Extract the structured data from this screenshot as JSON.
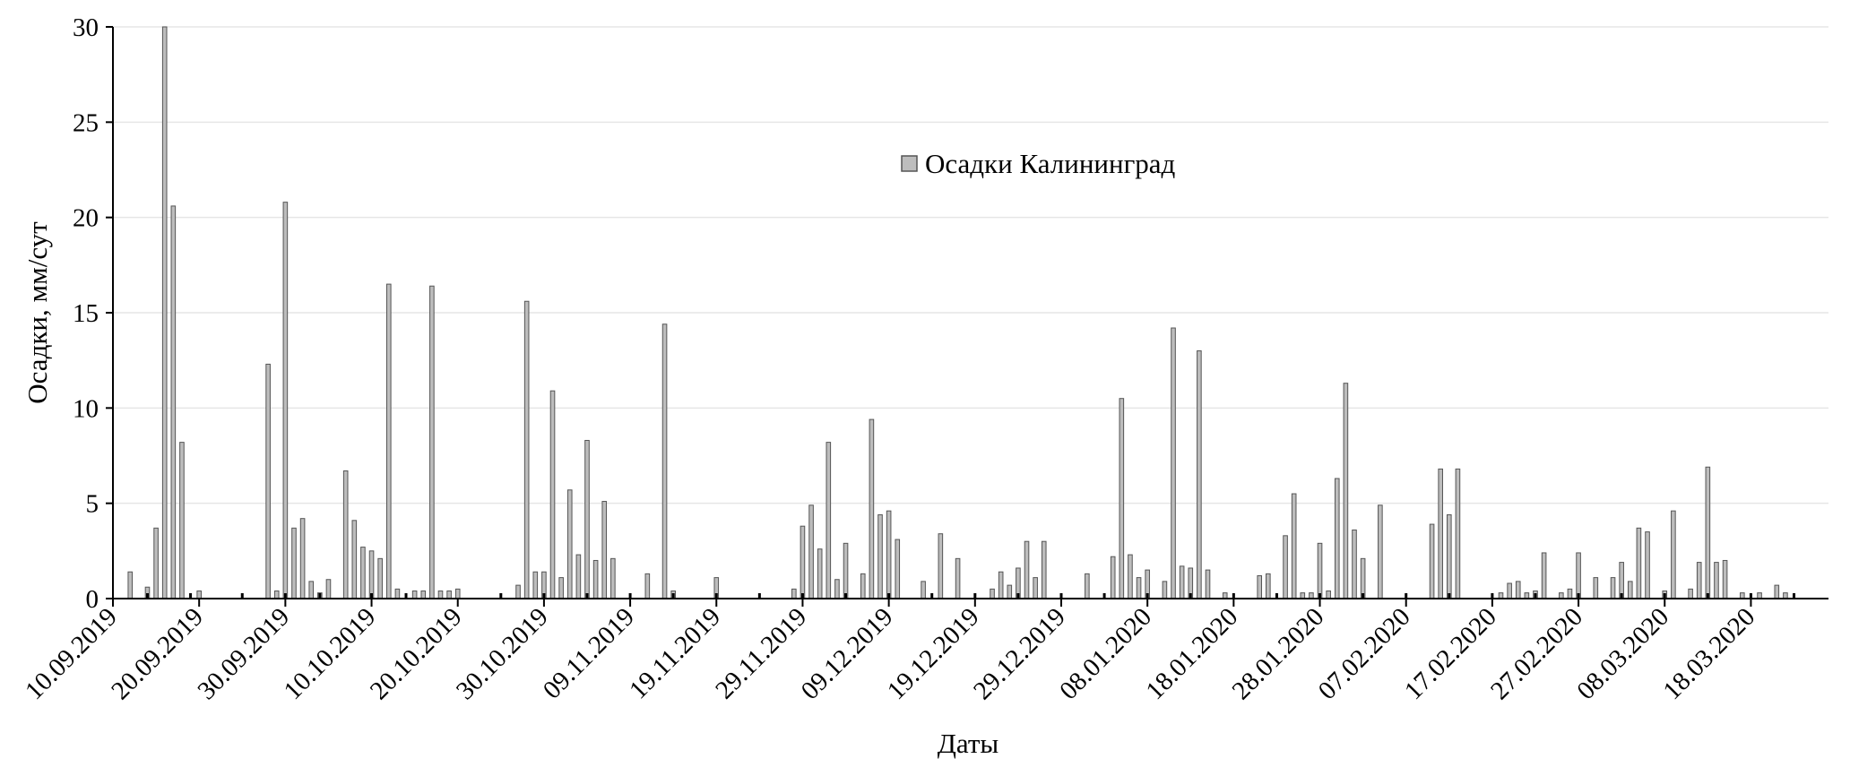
{
  "chart_data": {
    "type": "bar",
    "title": "",
    "xlabel": "Даты",
    "ylabel": "Осадки, мм/сут",
    "ylim": [
      0,
      30
    ],
    "yticks": [
      0,
      5,
      10,
      15,
      20,
      25,
      30
    ],
    "grid": true,
    "legend_position": "top-center",
    "x_range": [
      "2019-09-10",
      "2020-03-27"
    ],
    "xticks": [
      "10.09.2019",
      "20.09.2019",
      "30.09.2019",
      "10.10.2019",
      "20.10.2019",
      "30.10.2019",
      "09.11.2019",
      "19.11.2019",
      "29.11.2019",
      "09.12.2019",
      "19.12.2019",
      "29.12.2019",
      "08.01.2020",
      "18.01.2020",
      "28.01.2020",
      "07.02.2020",
      "17.02.2020",
      "27.02.2020",
      "08.03.2020",
      "18.03.2020"
    ],
    "colors": {
      "bar_fill": "#bdbdbd",
      "bar_stroke": "#555555",
      "axis": "#000000",
      "grid": "#e6e6e6"
    },
    "series": [
      {
        "name": "Осадки Калининград",
        "points": [
          [
            "2019-09-12",
            1.4
          ],
          [
            "2019-09-14",
            0.6
          ],
          [
            "2019-09-15",
            3.7
          ],
          [
            "2019-09-16",
            30.0
          ],
          [
            "2019-09-17",
            20.6
          ],
          [
            "2019-09-18",
            8.2
          ],
          [
            "2019-09-20",
            0.4
          ],
          [
            "2019-09-28",
            12.3
          ],
          [
            "2019-09-29",
            0.4
          ],
          [
            "2019-09-30",
            20.8
          ],
          [
            "2019-10-01",
            3.7
          ],
          [
            "2019-10-02",
            4.2
          ],
          [
            "2019-10-03",
            0.9
          ],
          [
            "2019-10-04",
            0.3
          ],
          [
            "2019-10-05",
            1.0
          ],
          [
            "2019-10-07",
            6.7
          ],
          [
            "2019-10-08",
            4.1
          ],
          [
            "2019-10-09",
            2.7
          ],
          [
            "2019-10-10",
            2.5
          ],
          [
            "2019-10-11",
            2.1
          ],
          [
            "2019-10-12",
            16.5
          ],
          [
            "2019-10-13",
            0.5
          ],
          [
            "2019-10-15",
            0.4
          ],
          [
            "2019-10-16",
            0.4
          ],
          [
            "2019-10-17",
            16.4
          ],
          [
            "2019-10-18",
            0.4
          ],
          [
            "2019-10-19",
            0.4
          ],
          [
            "2019-10-20",
            0.5
          ],
          [
            "2019-10-27",
            0.7
          ],
          [
            "2019-10-28",
            15.6
          ],
          [
            "2019-10-29",
            1.4
          ],
          [
            "2019-10-30",
            1.4
          ],
          [
            "2019-10-31",
            10.9
          ],
          [
            "2019-11-01",
            1.1
          ],
          [
            "2019-11-02",
            5.7
          ],
          [
            "2019-11-03",
            2.3
          ],
          [
            "2019-11-04",
            8.3
          ],
          [
            "2019-11-05",
            2.0
          ],
          [
            "2019-11-06",
            5.1
          ],
          [
            "2019-11-07",
            2.1
          ],
          [
            "2019-11-11",
            1.3
          ],
          [
            "2019-11-13",
            14.4
          ],
          [
            "2019-11-14",
            0.4
          ],
          [
            "2019-11-19",
            1.1
          ],
          [
            "2019-11-28",
            0.5
          ],
          [
            "2019-11-29",
            3.8
          ],
          [
            "2019-11-30",
            4.9
          ],
          [
            "2019-12-01",
            2.6
          ],
          [
            "2019-12-02",
            8.2
          ],
          [
            "2019-12-03",
            1.0
          ],
          [
            "2019-12-04",
            2.9
          ],
          [
            "2019-12-06",
            1.3
          ],
          [
            "2019-12-07",
            9.4
          ],
          [
            "2019-12-08",
            4.4
          ],
          [
            "2019-12-09",
            4.6
          ],
          [
            "2019-12-10",
            3.1
          ],
          [
            "2019-12-13",
            0.9
          ],
          [
            "2019-12-15",
            3.4
          ],
          [
            "2019-12-17",
            2.1
          ],
          [
            "2019-12-21",
            0.5
          ],
          [
            "2019-12-22",
            1.4
          ],
          [
            "2019-12-23",
            0.7
          ],
          [
            "2019-12-24",
            1.6
          ],
          [
            "2019-12-25",
            3.0
          ],
          [
            "2019-12-26",
            1.1
          ],
          [
            "2019-12-27",
            3.0
          ],
          [
            "2020-01-01",
            1.3
          ],
          [
            "2020-01-04",
            2.2
          ],
          [
            "2020-01-05",
            10.5
          ],
          [
            "2020-01-06",
            2.3
          ],
          [
            "2020-01-07",
            1.1
          ],
          [
            "2020-01-08",
            1.5
          ],
          [
            "2020-01-10",
            0.9
          ],
          [
            "2020-01-11",
            14.2
          ],
          [
            "2020-01-12",
            1.7
          ],
          [
            "2020-01-13",
            1.6
          ],
          [
            "2020-01-14",
            13.0
          ],
          [
            "2020-01-15",
            1.5
          ],
          [
            "2020-01-17",
            0.3
          ],
          [
            "2020-01-21",
            1.2
          ],
          [
            "2020-01-22",
            1.3
          ],
          [
            "2020-01-24",
            3.3
          ],
          [
            "2020-01-25",
            5.5
          ],
          [
            "2020-01-26",
            0.3
          ],
          [
            "2020-01-27",
            0.3
          ],
          [
            "2020-01-28",
            2.9
          ],
          [
            "2020-01-29",
            0.4
          ],
          [
            "2020-01-30",
            6.3
          ],
          [
            "2020-01-31",
            11.3
          ],
          [
            "2020-02-01",
            3.6
          ],
          [
            "2020-02-02",
            2.1
          ],
          [
            "2020-02-04",
            4.9
          ],
          [
            "2020-02-10",
            3.9
          ],
          [
            "2020-02-11",
            6.8
          ],
          [
            "2020-02-12",
            4.4
          ],
          [
            "2020-02-13",
            6.8
          ],
          [
            "2020-02-18",
            0.3
          ],
          [
            "2020-02-19",
            0.8
          ],
          [
            "2020-02-20",
            0.9
          ],
          [
            "2020-02-21",
            0.3
          ],
          [
            "2020-02-22",
            0.4
          ],
          [
            "2020-02-23",
            2.4
          ],
          [
            "2020-02-25",
            0.3
          ],
          [
            "2020-02-26",
            0.5
          ],
          [
            "2020-02-27",
            2.4
          ],
          [
            "2020-02-29",
            1.1
          ],
          [
            "2020-03-02",
            1.1
          ],
          [
            "2020-03-03",
            1.9
          ],
          [
            "2020-03-04",
            0.9
          ],
          [
            "2020-03-05",
            3.7
          ],
          [
            "2020-03-06",
            3.5
          ],
          [
            "2020-03-08",
            0.4
          ],
          [
            "2020-03-09",
            4.6
          ],
          [
            "2020-03-11",
            0.5
          ],
          [
            "2020-03-12",
            1.9
          ],
          [
            "2020-03-13",
            6.9
          ],
          [
            "2020-03-14",
            1.9
          ],
          [
            "2020-03-15",
            2.0
          ],
          [
            "2020-03-17",
            0.3
          ],
          [
            "2020-03-19",
            0.3
          ],
          [
            "2020-03-21",
            0.7
          ],
          [
            "2020-03-22",
            0.3
          ]
        ]
      }
    ],
    "near_zero_markers": [
      "2019-09-14",
      "2019-09-19",
      "2019-09-25",
      "2019-09-30",
      "2019-10-04",
      "2019-10-10",
      "2019-10-14",
      "2019-10-25",
      "2019-10-30",
      "2019-11-04",
      "2019-11-09",
      "2019-11-14",
      "2019-11-19",
      "2019-11-24",
      "2019-11-29",
      "2019-12-04",
      "2019-12-09",
      "2019-12-14",
      "2019-12-19",
      "2019-12-24",
      "2019-12-29",
      "2020-01-03",
      "2020-01-08",
      "2020-01-13",
      "2020-01-18",
      "2020-01-23",
      "2020-01-28",
      "2020-02-02",
      "2020-02-07",
      "2020-02-12",
      "2020-02-17",
      "2020-02-22",
      "2020-02-27",
      "2020-03-03",
      "2020-03-08",
      "2020-03-13",
      "2020-03-18",
      "2020-03-23"
    ]
  }
}
